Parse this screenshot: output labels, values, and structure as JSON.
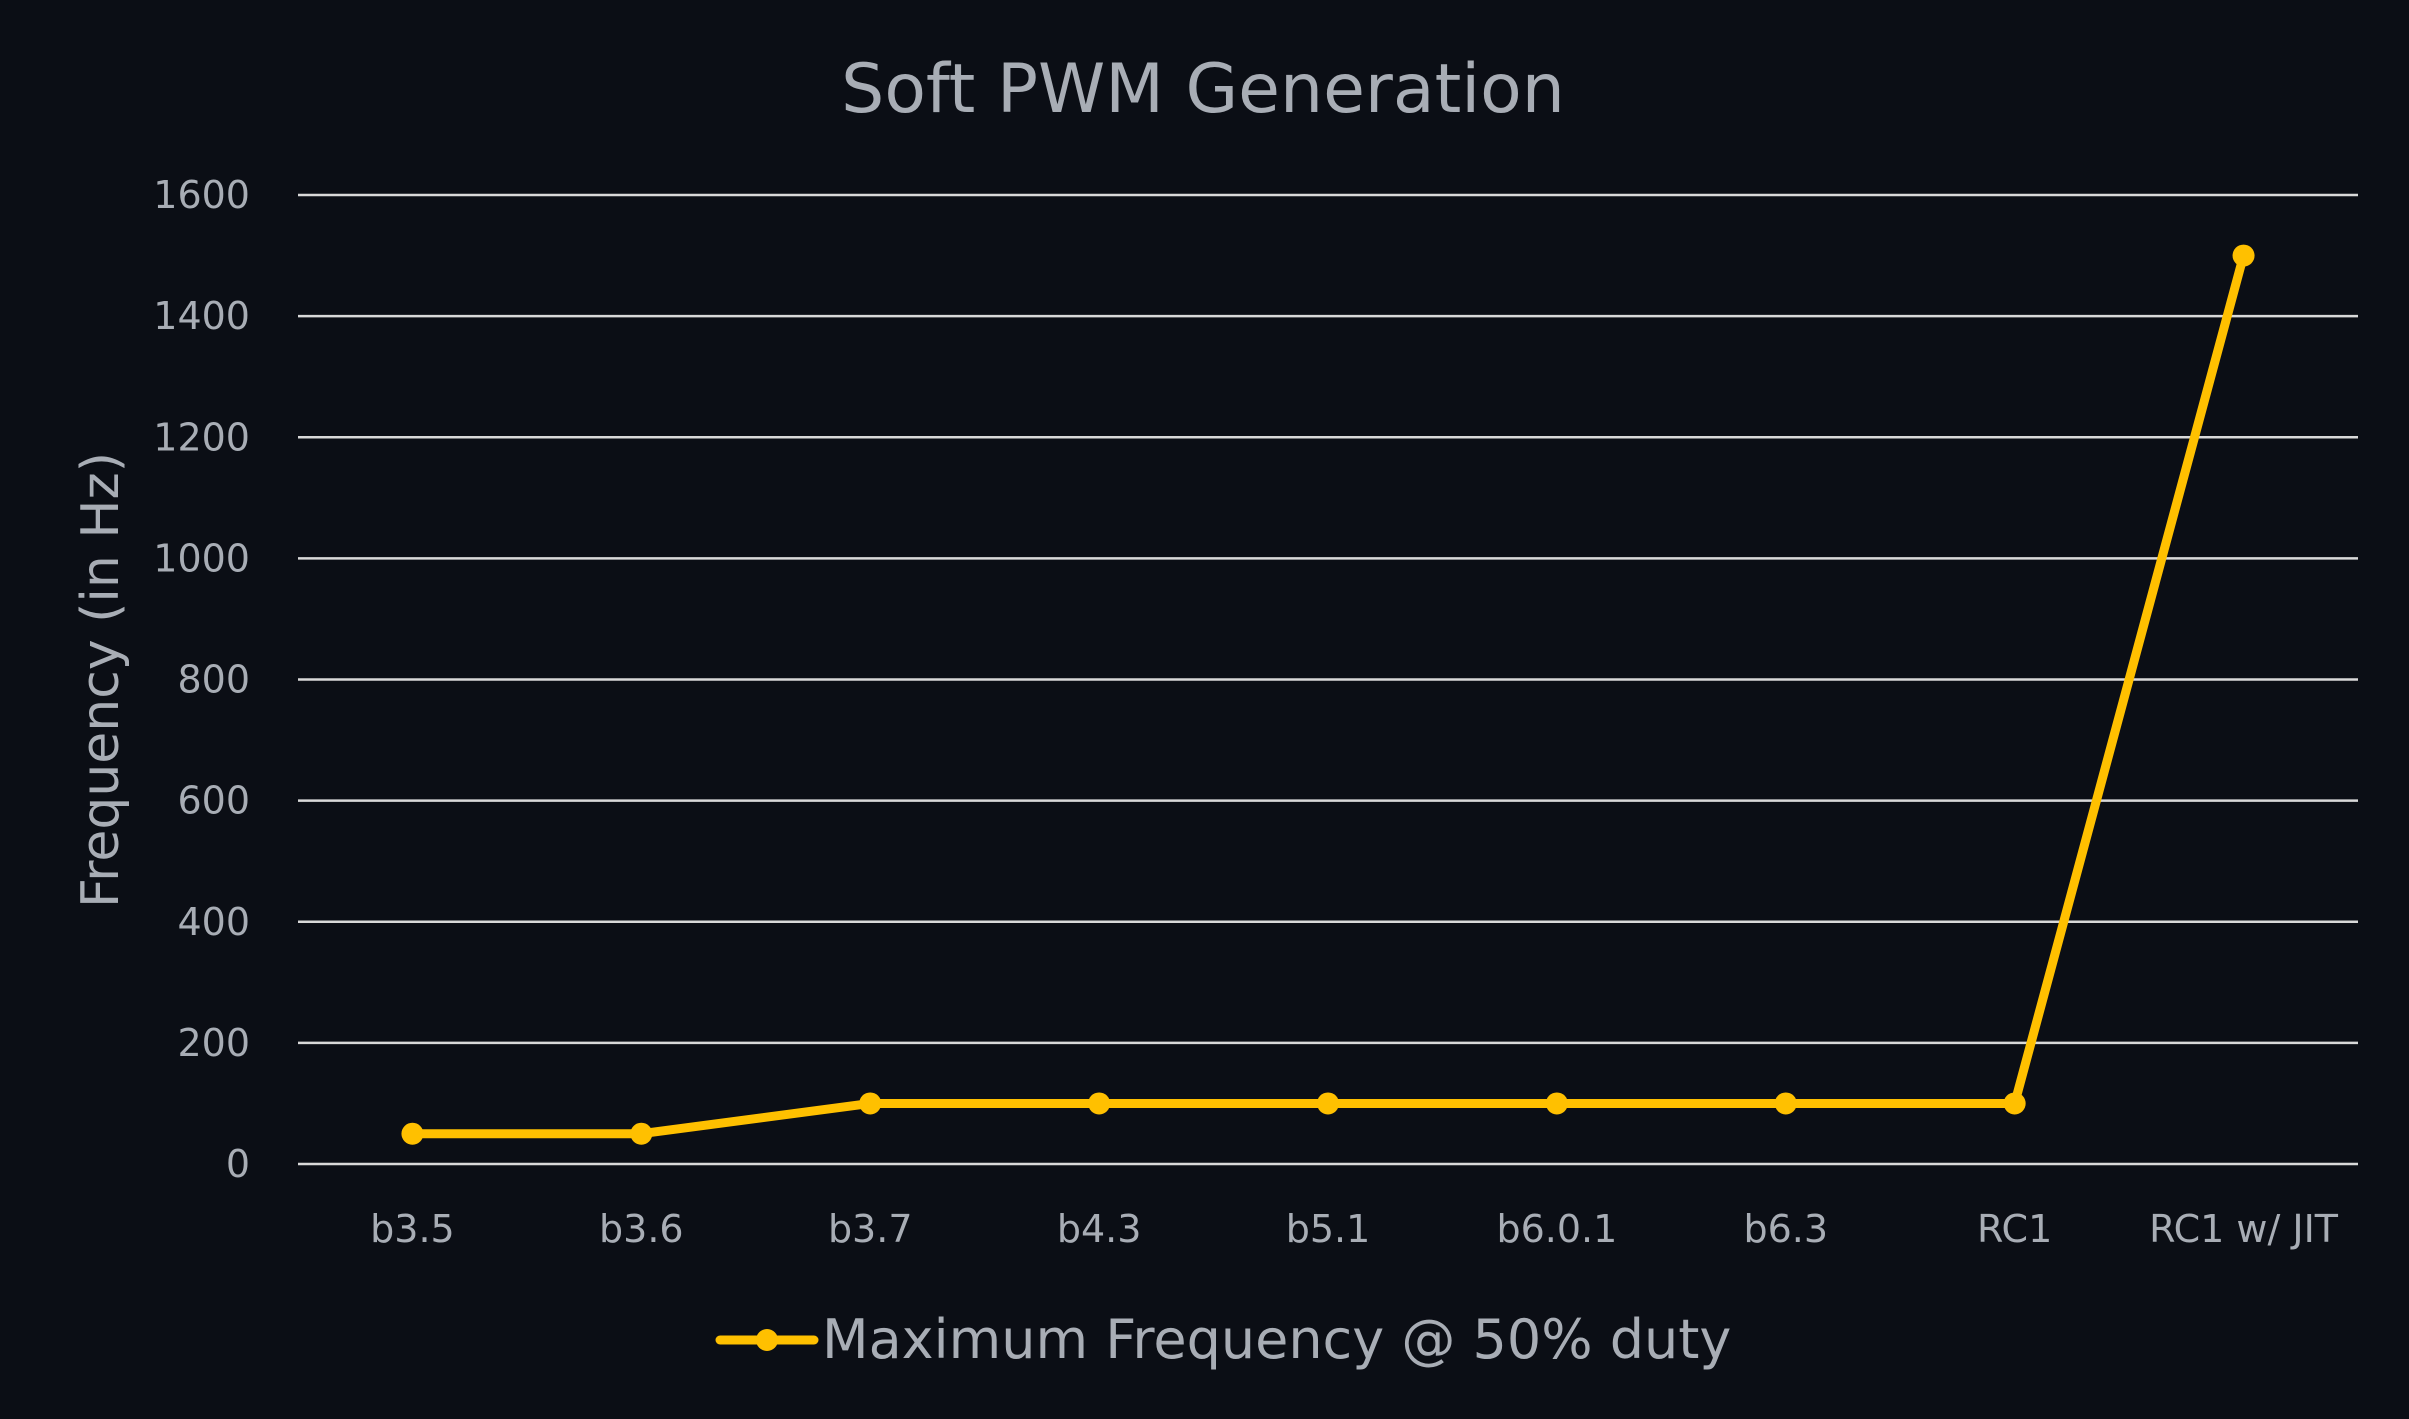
{
  "chart_data": {
    "type": "line",
    "title": "Soft PWM Generation",
    "xlabel": "",
    "ylabel": "Frequency (in Hz)",
    "categories": [
      "b3.5",
      "b3.6",
      "b3.7",
      "b4.3",
      "b5.1",
      "b6.0.1",
      "b6.3",
      "RC1",
      "RC1 w/ JIT"
    ],
    "series": [
      {
        "name": "Maximum Frequency @ 50% duty",
        "values": [
          50,
          50,
          100,
          100,
          100,
          100,
          100,
          100,
          1500
        ],
        "color": "#ffc000"
      }
    ],
    "ylim": [
      0,
      1600
    ],
    "yticks": [
      0,
      200,
      400,
      600,
      800,
      1000,
      1200,
      1400,
      1600
    ],
    "grid": true,
    "legend": "bottom-center"
  }
}
